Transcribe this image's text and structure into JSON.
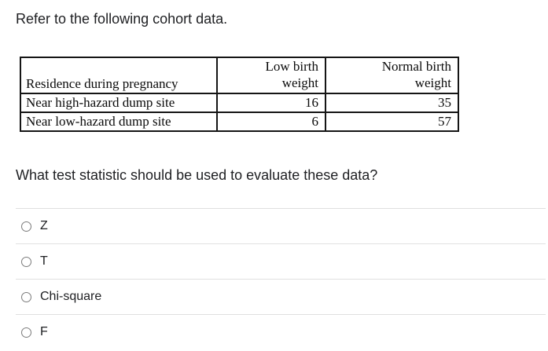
{
  "intro": "Refer to the following cohort data.",
  "table": {
    "headers": [
      "Residence during pregnancy",
      "Low birth\nweight",
      "Normal birth\nweight"
    ],
    "rows": [
      [
        "Near high-hazard dump site",
        "16",
        "35"
      ],
      [
        "Near low-hazard dump site",
        "6",
        "57"
      ]
    ]
  },
  "question": "What test statistic should be used to evaluate these data?",
  "options": [
    "Z",
    "T",
    "Chi-square",
    "F"
  ],
  "colors": {
    "page_background": "#ffffff",
    "text": "#202124",
    "table_border": "#151515",
    "divider": "#e0e0e0",
    "radio_border": "#7b7b7b"
  }
}
